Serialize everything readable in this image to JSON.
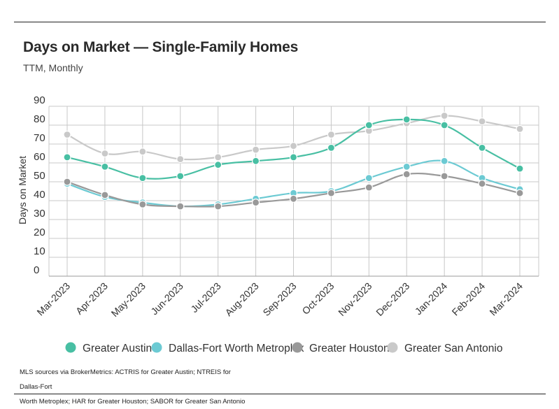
{
  "title": "Days on Market — Single-Family Homes",
  "subtitle": "TTM, Monthly",
  "source_line_1": "MLS sources via BrokerMetrics: ACTRIS for Greater Austin; NTREIS for Dallas-Fort",
  "source_line_2": "Worth Metroplex; HAR for Greater Houston; SABOR for Greater San Antonio",
  "chart_data": {
    "type": "line",
    "title": "Days on Market — Single-Family Homes",
    "subtitle": "TTM, Monthly",
    "xlabel": "",
    "ylabel": "Days on Market",
    "ylim": [
      0,
      90
    ],
    "yticks": [
      0,
      10,
      20,
      30,
      40,
      50,
      60,
      70,
      80,
      90
    ],
    "grid": true,
    "legend": "bottom",
    "categories": [
      "Mar-2023",
      "Apr-2023",
      "May-2023",
      "Jun-2023",
      "Jul-2023",
      "Aug-2023",
      "Sep-2023",
      "Oct-2023",
      "Nov-2023",
      "Dec-2023",
      "Jan-2024",
      "Feb-2024",
      "Mar-2024"
    ],
    "series": [
      {
        "name": "Greater Austin",
        "color": "#48bfa3",
        "values": [
          63,
          58,
          52,
          53,
          59,
          61,
          63,
          68,
          80,
          83,
          80,
          68,
          57
        ]
      },
      {
        "name": "Dallas-Fort Worth Metroplex",
        "color": "#6ccad3",
        "values": [
          49,
          42,
          39,
          37,
          38,
          41,
          44,
          45,
          52,
          58,
          61,
          52,
          46
        ]
      },
      {
        "name": "Greater Houston",
        "color": "#999999",
        "values": [
          50,
          43,
          38,
          37,
          37,
          39,
          41,
          44,
          47,
          54,
          53,
          49,
          44
        ]
      },
      {
        "name": "Greater San Antonio",
        "color": "#c9c9c9",
        "values": [
          75,
          65,
          66,
          62,
          63,
          67,
          69,
          75,
          77,
          81,
          85,
          82,
          78
        ]
      }
    ]
  }
}
